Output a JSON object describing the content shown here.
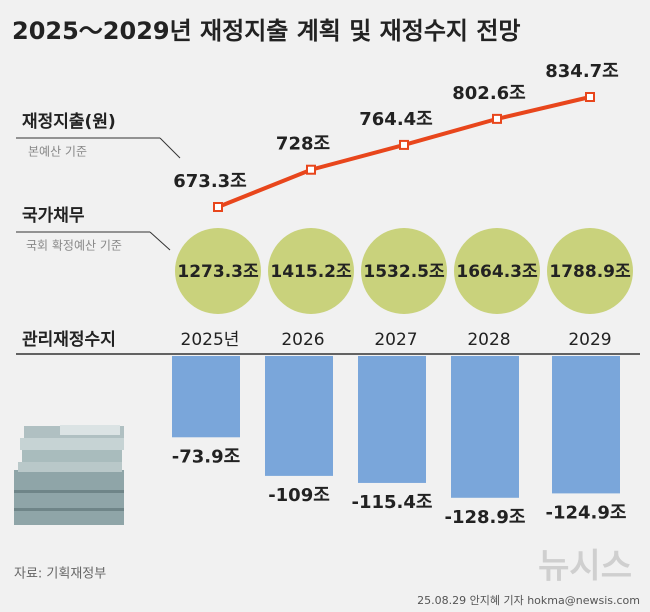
{
  "title": "2025～2029년 재정지출 계획 및 재정수지 전망",
  "chart_data": [
    {
      "type": "line",
      "label": "재정지출(원)",
      "note": "본예산 기준",
      "values": [
        673.3,
        728,
        764.4,
        802.6,
        834.7
      ],
      "value_labels": [
        "673.3조",
        "728조",
        "764.4조",
        "802.6조",
        "834.7조"
      ],
      "color": "#e8461c"
    },
    {
      "type": "circle",
      "label": "국가채무",
      "note": "국회 확정예산 기준",
      "values": [
        1273.3,
        1415.2,
        1532.5,
        1664.3,
        1788.9
      ],
      "value_labels": [
        "1273.3조",
        "1415.2조",
        "1532.5조",
        "1664.3조",
        "1788.9조"
      ],
      "color": "#c9d27c"
    },
    {
      "type": "bar",
      "label": "관리재정수지",
      "categories": [
        "2025년",
        "2026",
        "2027",
        "2028",
        "2029"
      ],
      "values": [
        -73.9,
        -109,
        -115.4,
        -128.9,
        -124.9
      ],
      "value_labels": [
        "-73.9조",
        "-109조",
        "-115.4조",
        "-128.9조",
        "-124.9조"
      ],
      "color": "#7aa6da"
    }
  ],
  "source": "자료: 기획재정부",
  "credit": "25.08.29 안지혜 기자 hokma@newsis.com",
  "logo": "뉴시스"
}
